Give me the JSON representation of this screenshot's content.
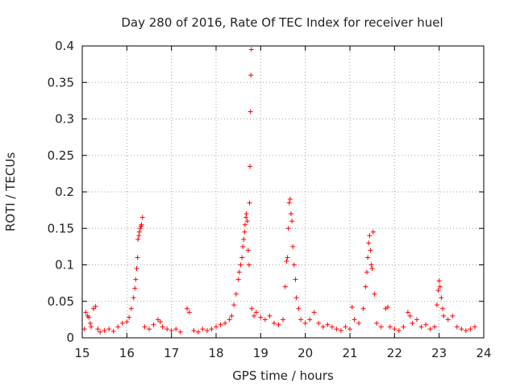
{
  "chart_data": {
    "type": "scatter",
    "title": "Day 280 of 2016, Rate Of TEC Index for receiver huel",
    "xlabel": "GPS time / hours",
    "ylabel": "ROTI / TECUs",
    "xlim": [
      15,
      24
    ],
    "ylim": [
      0,
      0.4
    ],
    "xticks": [
      15,
      16,
      17,
      18,
      19,
      20,
      21,
      22,
      23,
      24
    ],
    "yticks": [
      0,
      0.05,
      0.1,
      0.15,
      0.2,
      0.25,
      0.3,
      0.35,
      0.4
    ],
    "xtick_labels": [
      "15",
      "16",
      "17",
      "18",
      "19",
      "20",
      "21",
      "22",
      "23",
      "24"
    ],
    "ytick_labels": [
      "0",
      "0.05",
      "0.1",
      "0.15",
      "0.2",
      "0.25",
      "0.3",
      "0.35",
      "0.4"
    ],
    "grid": true,
    "marker": "+",
    "colors": {
      "series": "#ff0000",
      "axis": "#000000",
      "grid": "#a0a0a0"
    },
    "series": [
      {
        "name": "ROTI",
        "points": [
          [
            15.05,
            0.012
          ],
          [
            15.08,
            0.035
          ],
          [
            15.12,
            0.03
          ],
          [
            15.15,
            0.028
          ],
          [
            15.18,
            0.02
          ],
          [
            15.2,
            0.015
          ],
          [
            15.25,
            0.04
          ],
          [
            15.3,
            0.043
          ],
          [
            15.35,
            0.012
          ],
          [
            15.4,
            0.008
          ],
          [
            15.5,
            0.01
          ],
          [
            15.6,
            0.012
          ],
          [
            15.7,
            0.009
          ],
          [
            15.8,
            0.015
          ],
          [
            15.9,
            0.02
          ],
          [
            16.0,
            0.022
          ],
          [
            16.05,
            0.028
          ],
          [
            16.1,
            0.04
          ],
          [
            16.15,
            0.055
          ],
          [
            16.18,
            0.068
          ],
          [
            16.2,
            0.08
          ],
          [
            16.22,
            0.095
          ],
          [
            16.24,
            0.11
          ],
          [
            16.25,
            0.135
          ],
          [
            16.27,
            0.14
          ],
          [
            16.28,
            0.145
          ],
          [
            16.3,
            0.15
          ],
          [
            16.32,
            0.153
          ],
          [
            16.33,
            0.155
          ],
          [
            16.35,
            0.165
          ],
          [
            16.4,
            0.015
          ],
          [
            16.5,
            0.012
          ],
          [
            16.6,
            0.018
          ],
          [
            16.7,
            0.025
          ],
          [
            16.75,
            0.022
          ],
          [
            16.8,
            0.015
          ],
          [
            16.9,
            0.012
          ],
          [
            17.0,
            0.01
          ],
          [
            17.1,
            0.012
          ],
          [
            17.2,
            0.008
          ],
          [
            17.35,
            0.04
          ],
          [
            17.4,
            0.035
          ],
          [
            17.5,
            0.01
          ],
          [
            17.6,
            0.008
          ],
          [
            17.7,
            0.012
          ],
          [
            17.8,
            0.01
          ],
          [
            17.9,
            0.012
          ],
          [
            18.0,
            0.015
          ],
          [
            18.1,
            0.018
          ],
          [
            18.2,
            0.02
          ],
          [
            18.3,
            0.025
          ],
          [
            18.35,
            0.03
          ],
          [
            18.4,
            0.045
          ],
          [
            18.45,
            0.06
          ],
          [
            18.5,
            0.08
          ],
          [
            18.52,
            0.09
          ],
          [
            18.55,
            0.1
          ],
          [
            18.58,
            0.11
          ],
          [
            18.6,
            0.125
          ],
          [
            18.62,
            0.135
          ],
          [
            18.64,
            0.145
          ],
          [
            18.65,
            0.155
          ],
          [
            18.67,
            0.165
          ],
          [
            18.68,
            0.17
          ],
          [
            18.7,
            0.16
          ],
          [
            18.72,
            0.12
          ],
          [
            18.74,
            0.1
          ],
          [
            18.75,
            0.185
          ],
          [
            18.76,
            0.235
          ],
          [
            18.77,
            0.31
          ],
          [
            18.78,
            0.36
          ],
          [
            18.79,
            0.395
          ],
          [
            18.8,
            0.04
          ],
          [
            18.85,
            0.03
          ],
          [
            18.9,
            0.035
          ],
          [
            19.0,
            0.028
          ],
          [
            19.1,
            0.025
          ],
          [
            19.2,
            0.03
          ],
          [
            19.3,
            0.02
          ],
          [
            19.4,
            0.018
          ],
          [
            19.5,
            0.025
          ],
          [
            19.55,
            0.07
          ],
          [
            19.58,
            0.105
          ],
          [
            19.6,
            0.11
          ],
          [
            19.62,
            0.15
          ],
          [
            19.64,
            0.185
          ],
          [
            19.66,
            0.19
          ],
          [
            19.68,
            0.17
          ],
          [
            19.7,
            0.16
          ],
          [
            19.72,
            0.125
          ],
          [
            19.75,
            0.1
          ],
          [
            19.78,
            0.08
          ],
          [
            19.8,
            0.055
          ],
          [
            19.85,
            0.04
          ],
          [
            19.9,
            0.025
          ],
          [
            20.0,
            0.02
          ],
          [
            20.1,
            0.025
          ],
          [
            20.2,
            0.035
          ],
          [
            20.3,
            0.02
          ],
          [
            20.4,
            0.015
          ],
          [
            20.5,
            0.018
          ],
          [
            20.6,
            0.015
          ],
          [
            20.7,
            0.012
          ],
          [
            20.8,
            0.01
          ],
          [
            20.9,
            0.015
          ],
          [
            21.0,
            0.012
          ],
          [
            21.05,
            0.042
          ],
          [
            21.1,
            0.025
          ],
          [
            21.2,
            0.02
          ],
          [
            21.3,
            0.04
          ],
          [
            21.35,
            0.07
          ],
          [
            21.38,
            0.09
          ],
          [
            21.4,
            0.11
          ],
          [
            21.42,
            0.13
          ],
          [
            21.44,
            0.14
          ],
          [
            21.46,
            0.12
          ],
          [
            21.48,
            0.1
          ],
          [
            21.5,
            0.095
          ],
          [
            21.52,
            0.145
          ],
          [
            21.55,
            0.06
          ],
          [
            21.6,
            0.02
          ],
          [
            21.7,
            0.015
          ],
          [
            21.8,
            0.04
          ],
          [
            21.85,
            0.042
          ],
          [
            21.9,
            0.015
          ],
          [
            22.0,
            0.012
          ],
          [
            22.1,
            0.01
          ],
          [
            22.2,
            0.015
          ],
          [
            22.3,
            0.035
          ],
          [
            22.35,
            0.03
          ],
          [
            22.4,
            0.02
          ],
          [
            22.5,
            0.025
          ],
          [
            22.6,
            0.015
          ],
          [
            22.7,
            0.018
          ],
          [
            22.8,
            0.012
          ],
          [
            22.9,
            0.015
          ],
          [
            22.95,
            0.045
          ],
          [
            22.98,
            0.065
          ],
          [
            23.0,
            0.078
          ],
          [
            23.02,
            0.07
          ],
          [
            23.05,
            0.055
          ],
          [
            23.08,
            0.04
          ],
          [
            23.1,
            0.03
          ],
          [
            23.2,
            0.025
          ],
          [
            23.3,
            0.03
          ],
          [
            23.4,
            0.015
          ],
          [
            23.5,
            0.012
          ],
          [
            23.6,
            0.01
          ],
          [
            23.7,
            0.012
          ],
          [
            23.8,
            0.015
          ]
        ]
      }
    ]
  }
}
